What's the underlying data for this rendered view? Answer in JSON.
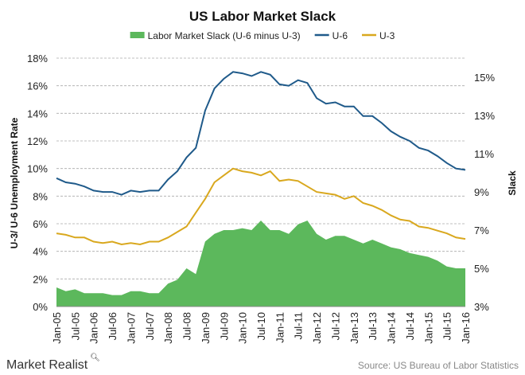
{
  "chart_data": {
    "type": "line",
    "title": "US Labor Market Slack",
    "ylabel": "U-3/ U-6 Unemployment Rate",
    "y2label": "Slack",
    "ylim": [
      0,
      18
    ],
    "y2lim": [
      3,
      16
    ],
    "yticks": [
      "0%",
      "2%",
      "4%",
      "6%",
      "8%",
      "10%",
      "12%",
      "14%",
      "16%",
      "18%"
    ],
    "y2ticks": [
      "3%",
      "5%",
      "7%",
      "9%",
      "11%",
      "13%",
      "15%"
    ],
    "xtick_labels": [
      "Jan-05",
      "Jul-05",
      "Jan-06",
      "Jul-06",
      "Jan-07",
      "Jul-07",
      "Jan-08",
      "Jul-08",
      "Jan-09",
      "Jul-09",
      "Jan-10",
      "Jul-10",
      "Jan-11",
      "Jul-11",
      "Jan-12",
      "Jul-12",
      "Jan-13",
      "Jul-13",
      "Jan-14",
      "Jul-14",
      "Jan-15",
      "Jul-15",
      "Jan-16"
    ],
    "x_note": "quarterly points from Jan-05 to Jan-16",
    "grid": true,
    "legend_position": "top",
    "series": [
      {
        "name": "Labor Market Slack (U-6 minus U-3)",
        "type": "area",
        "axis": "right",
        "color": "#5cb85c",
        "values": [
          4.0,
          3.8,
          3.9,
          3.7,
          3.7,
          3.7,
          3.6,
          3.6,
          3.8,
          3.8,
          3.7,
          3.7,
          4.2,
          4.4,
          5.0,
          4.7,
          6.4,
          6.8,
          7.0,
          7.0,
          7.1,
          7.0,
          7.5,
          7.0,
          7.0,
          6.8,
          7.3,
          7.5,
          6.8,
          6.5,
          6.7,
          6.7,
          6.5,
          6.3,
          6.5,
          6.3,
          6.1,
          6.0,
          5.8,
          5.7,
          5.6,
          5.4,
          5.1,
          5.0,
          5.0
        ]
      },
      {
        "name": "U-6",
        "type": "line",
        "axis": "left",
        "color": "#1f5a8a",
        "values": [
          9.3,
          9.0,
          8.9,
          8.7,
          8.4,
          8.3,
          8.3,
          8.1,
          8.4,
          8.3,
          8.4,
          8.4,
          9.2,
          9.8,
          10.8,
          11.5,
          14.2,
          15.8,
          16.5,
          17.0,
          16.9,
          16.7,
          17.0,
          16.8,
          16.1,
          16.0,
          16.4,
          16.2,
          15.1,
          14.7,
          14.8,
          14.5,
          14.5,
          13.8,
          13.8,
          13.3,
          12.7,
          12.3,
          12.0,
          11.5,
          11.3,
          10.9,
          10.4,
          10.0,
          9.9
        ]
      },
      {
        "name": "U-3",
        "type": "line",
        "axis": "left",
        "color": "#d9a81e",
        "values": [
          5.3,
          5.2,
          5.0,
          5.0,
          4.7,
          4.6,
          4.7,
          4.5,
          4.6,
          4.5,
          4.7,
          4.7,
          5.0,
          5.4,
          5.8,
          6.8,
          7.8,
          9.0,
          9.5,
          10.0,
          9.8,
          9.7,
          9.5,
          9.8,
          9.1,
          9.2,
          9.1,
          8.7,
          8.3,
          8.2,
          8.1,
          7.8,
          8.0,
          7.5,
          7.3,
          7.0,
          6.6,
          6.3,
          6.2,
          5.8,
          5.7,
          5.5,
          5.3,
          5.0,
          4.9
        ]
      }
    ]
  },
  "footer": {
    "brand": "Market Realist",
    "source": "Source: US Bureau of Labor Statistics"
  }
}
